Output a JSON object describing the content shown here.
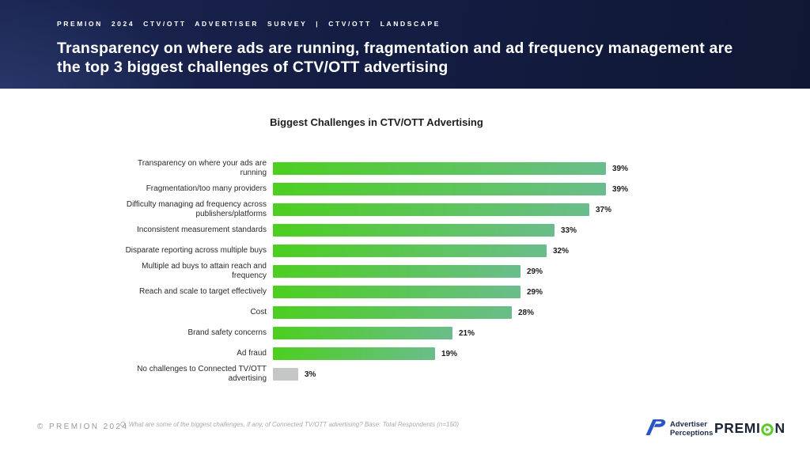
{
  "header": {
    "eyebrow": "PREMION 2024 CTV/OTT ADVERTISER SURVEY | CTV/OTT LANDSCAPE",
    "title": "Transparency on where ads are running, fragmentation and ad frequency management are the top 3 biggest challenges of CTV/OTT advertising"
  },
  "chart_data": {
    "type": "bar",
    "orientation": "horizontal",
    "title": "Biggest Challenges in CTV/OTT Advertising",
    "categories": [
      "Transparency on where your ads are running",
      "Fragmentation/too many providers",
      "Difficulty managing ad frequency across publishers/platforms",
      "Inconsistent measurement standards",
      "Disparate reporting across multiple buys",
      "Multiple ad buys to attain reach and frequency",
      "Reach and scale to target effectively",
      "Cost",
      "Brand safety concerns",
      "Ad fraud",
      "No challenges to Connected TV/OTT advertising"
    ],
    "values": [
      39,
      39,
      37,
      33,
      32,
      29,
      29,
      28,
      21,
      19,
      3
    ],
    "value_suffix": "%",
    "xlim": [
      0,
      40
    ],
    "grid": false,
    "value_label_position": "end",
    "bar_gradient": [
      "#4ccf1f",
      "#6abd8b"
    ],
    "muted_color": "#c4c7c5",
    "muted_indices": [
      10
    ]
  },
  "footer": {
    "copyright": "© PREMION 2024",
    "footnote": "Q. What are some of the biggest challenges, if any, of Connected TV/OTT advertising? Base: Total Respondents (n=150)",
    "logos": {
      "advertiser_perceptions": {
        "line1": "Advertiser",
        "line2": "Perceptions"
      },
      "premion": {
        "text_before_icon": "PREMI",
        "text_after_icon": "N"
      }
    }
  },
  "colors": {
    "header_background": "#141e44",
    "bar_gradient_start": "#4ccf1f",
    "bar_gradient_end": "#6abd8b",
    "muted_bar": "#c4c7c5",
    "premion_green": "#5dc928",
    "ap_blue": "#2a55c8"
  }
}
